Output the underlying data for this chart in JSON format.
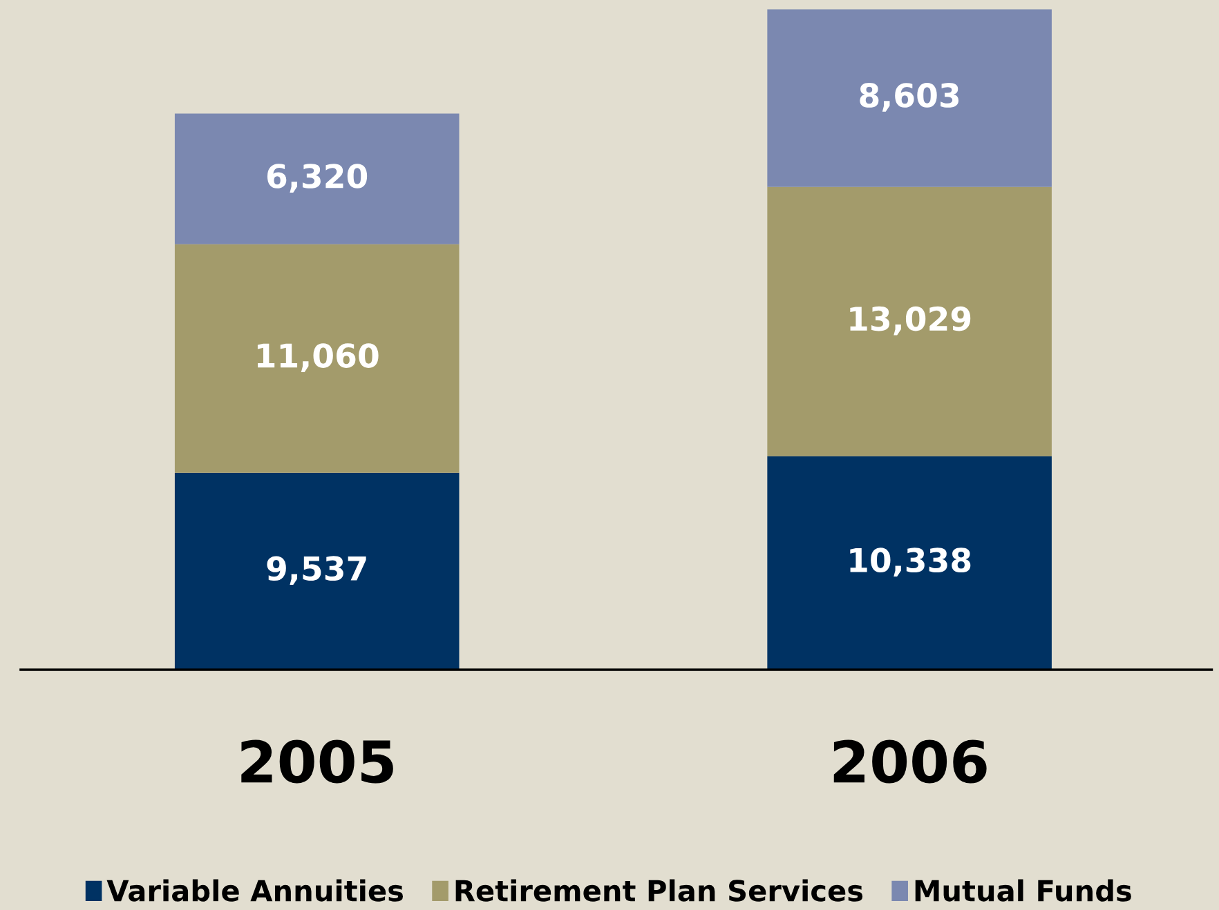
{
  "chart_data": {
    "type": "bar",
    "stacked": true,
    "categories": [
      "2005",
      "2006"
    ],
    "series": [
      {
        "name": "Variable Annuities",
        "color": "#003263",
        "values": [
          9537,
          10338
        ],
        "value_labels": [
          "9,537",
          "10,338"
        ]
      },
      {
        "name": "Retirement Plan Services",
        "color": "#a39b6b",
        "values": [
          11060,
          13029
        ],
        "value_labels": [
          "11,060",
          "13,029"
        ]
      },
      {
        "name": "Mutual Funds",
        "color": "#7b88b0",
        "values": [
          6320,
          8603
        ],
        "value_labels": [
          "6,320",
          "8,603"
        ]
      }
    ],
    "legend": "bottom",
    "grid": false
  }
}
